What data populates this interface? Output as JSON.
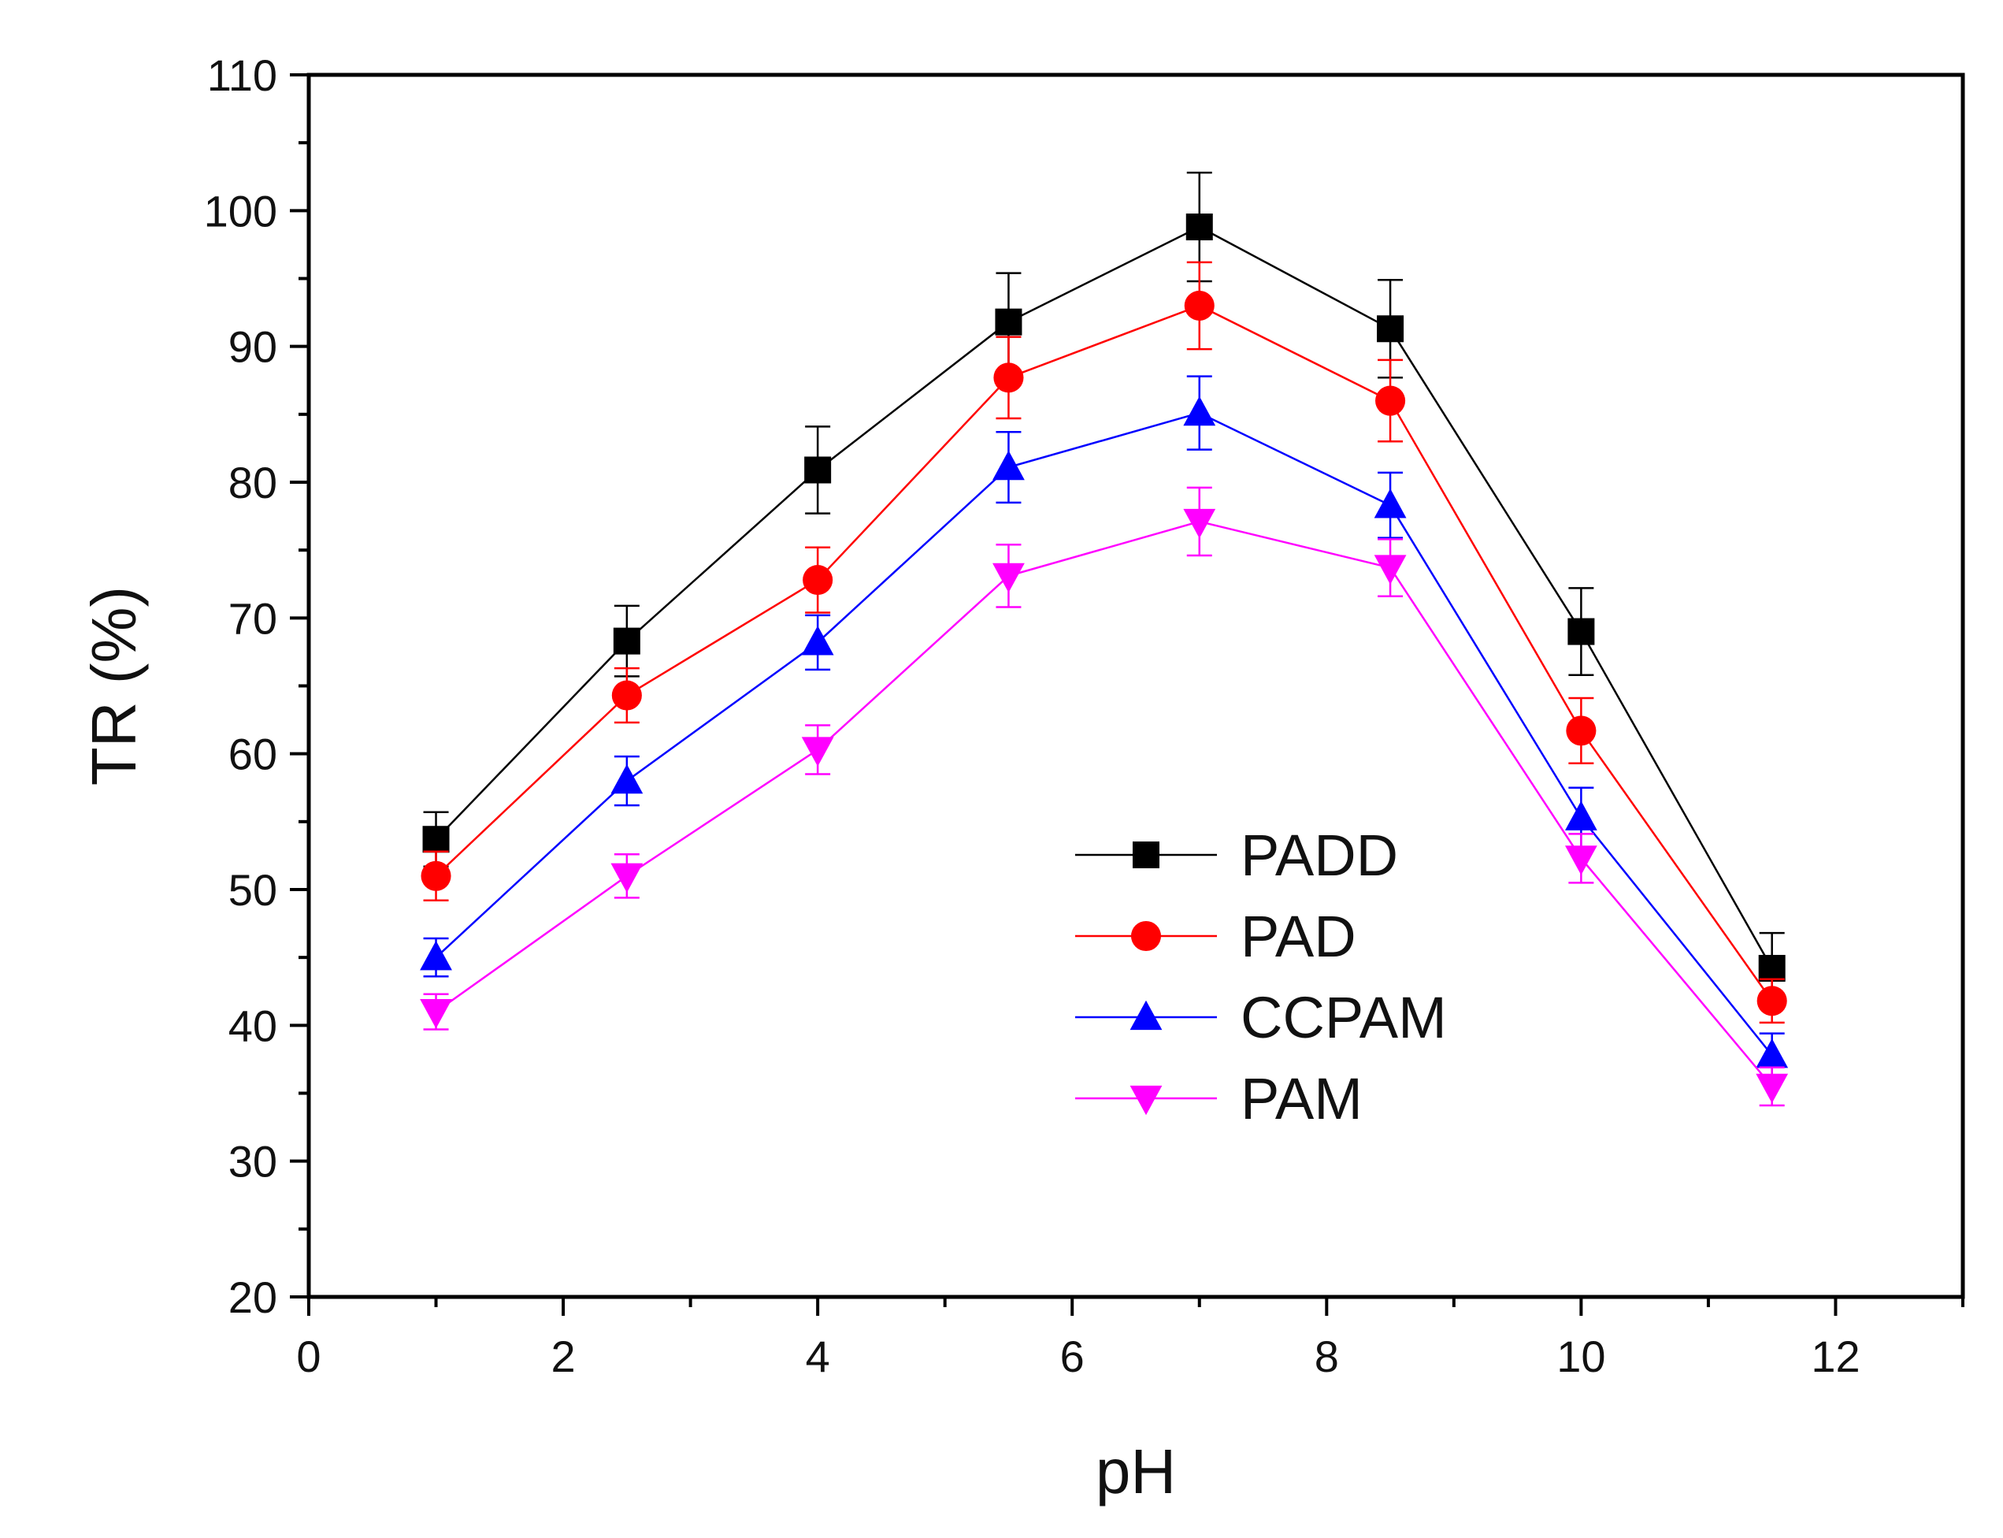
{
  "chart_data": {
    "type": "line",
    "title": "",
    "xlabel": "pH",
    "ylabel": "TR (%)",
    "xlim": [
      0,
      13
    ],
    "ylim": [
      20,
      110
    ],
    "xticks": [
      0,
      2,
      4,
      6,
      8,
      10,
      12
    ],
    "yticks": [
      20,
      30,
      40,
      50,
      60,
      70,
      80,
      90,
      100,
      110
    ],
    "x": [
      1,
      2.5,
      4,
      5.5,
      7,
      8.5,
      10,
      11.5
    ],
    "legend_position": "center-right",
    "series": [
      {
        "name": "PADD",
        "color": "#000000",
        "marker": "square",
        "values": [
          53.7,
          68.3,
          80.9,
          91.8,
          98.8,
          91.3,
          69.0,
          44.2
        ],
        "errors": [
          2.0,
          2.6,
          3.2,
          3.6,
          4.0,
          3.6,
          3.2,
          2.6
        ]
      },
      {
        "name": "PAD",
        "color": "#ff0000",
        "marker": "circle",
        "values": [
          51.0,
          64.3,
          72.8,
          87.7,
          93.0,
          86.0,
          61.7,
          41.8
        ],
        "errors": [
          1.8,
          2.0,
          2.4,
          3.0,
          3.2,
          3.0,
          2.4,
          1.6
        ]
      },
      {
        "name": "CCPAM",
        "color": "#0000ff",
        "marker": "triangle-up",
        "values": [
          45.0,
          58.0,
          68.2,
          81.1,
          85.1,
          78.3,
          55.3,
          37.8
        ],
        "errors": [
          1.4,
          1.8,
          2.0,
          2.6,
          2.7,
          2.4,
          2.2,
          1.6
        ]
      },
      {
        "name": "PAM",
        "color": "#ff00ff",
        "marker": "triangle-down",
        "values": [
          41.0,
          51.0,
          60.3,
          73.1,
          77.1,
          73.7,
          52.3,
          35.5
        ],
        "errors": [
          1.3,
          1.6,
          1.8,
          2.3,
          2.5,
          2.1,
          1.8,
          1.4
        ]
      }
    ]
  }
}
